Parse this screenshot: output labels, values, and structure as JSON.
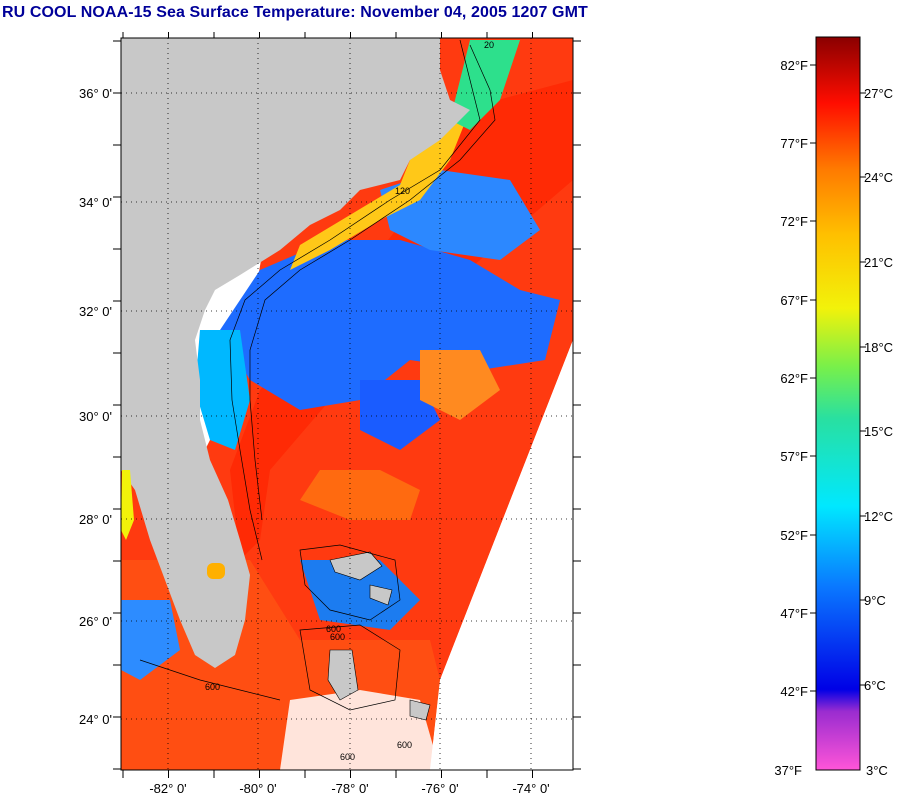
{
  "title": "RU COOL  NOAA-15  Sea Surface Temperature:  November 04, 2005 1207 GMT",
  "map": {
    "lat_labels": [
      "36° 0'",
      "34° 0'",
      "32° 0'",
      "30° 0'",
      "28° 0'",
      "26° 0'",
      "24° 0'"
    ],
    "lon_labels": [
      "-82° 0'",
      "-80° 0'",
      "-78° 0'",
      "-76° 0'",
      "-74° 0'"
    ],
    "contour_labels": [
      "20",
      "120",
      "600",
      "600",
      "600",
      "600",
      "600"
    ],
    "colors": {
      "land": "#cccccc",
      "no_data": "#ffffff",
      "grid": "#000000"
    }
  },
  "colorbar": {
    "fahrenheit_labels": [
      "82°F",
      "77°F",
      "72°F",
      "67°F",
      "62°F",
      "57°F",
      "52°F",
      "47°F",
      "42°F",
      "37°F"
    ],
    "celsius_labels": [
      "27°C",
      "24°C",
      "21°C",
      "18°C",
      "15°C",
      "12°C",
      "9°C",
      "6°C",
      "3°C"
    ]
  }
}
